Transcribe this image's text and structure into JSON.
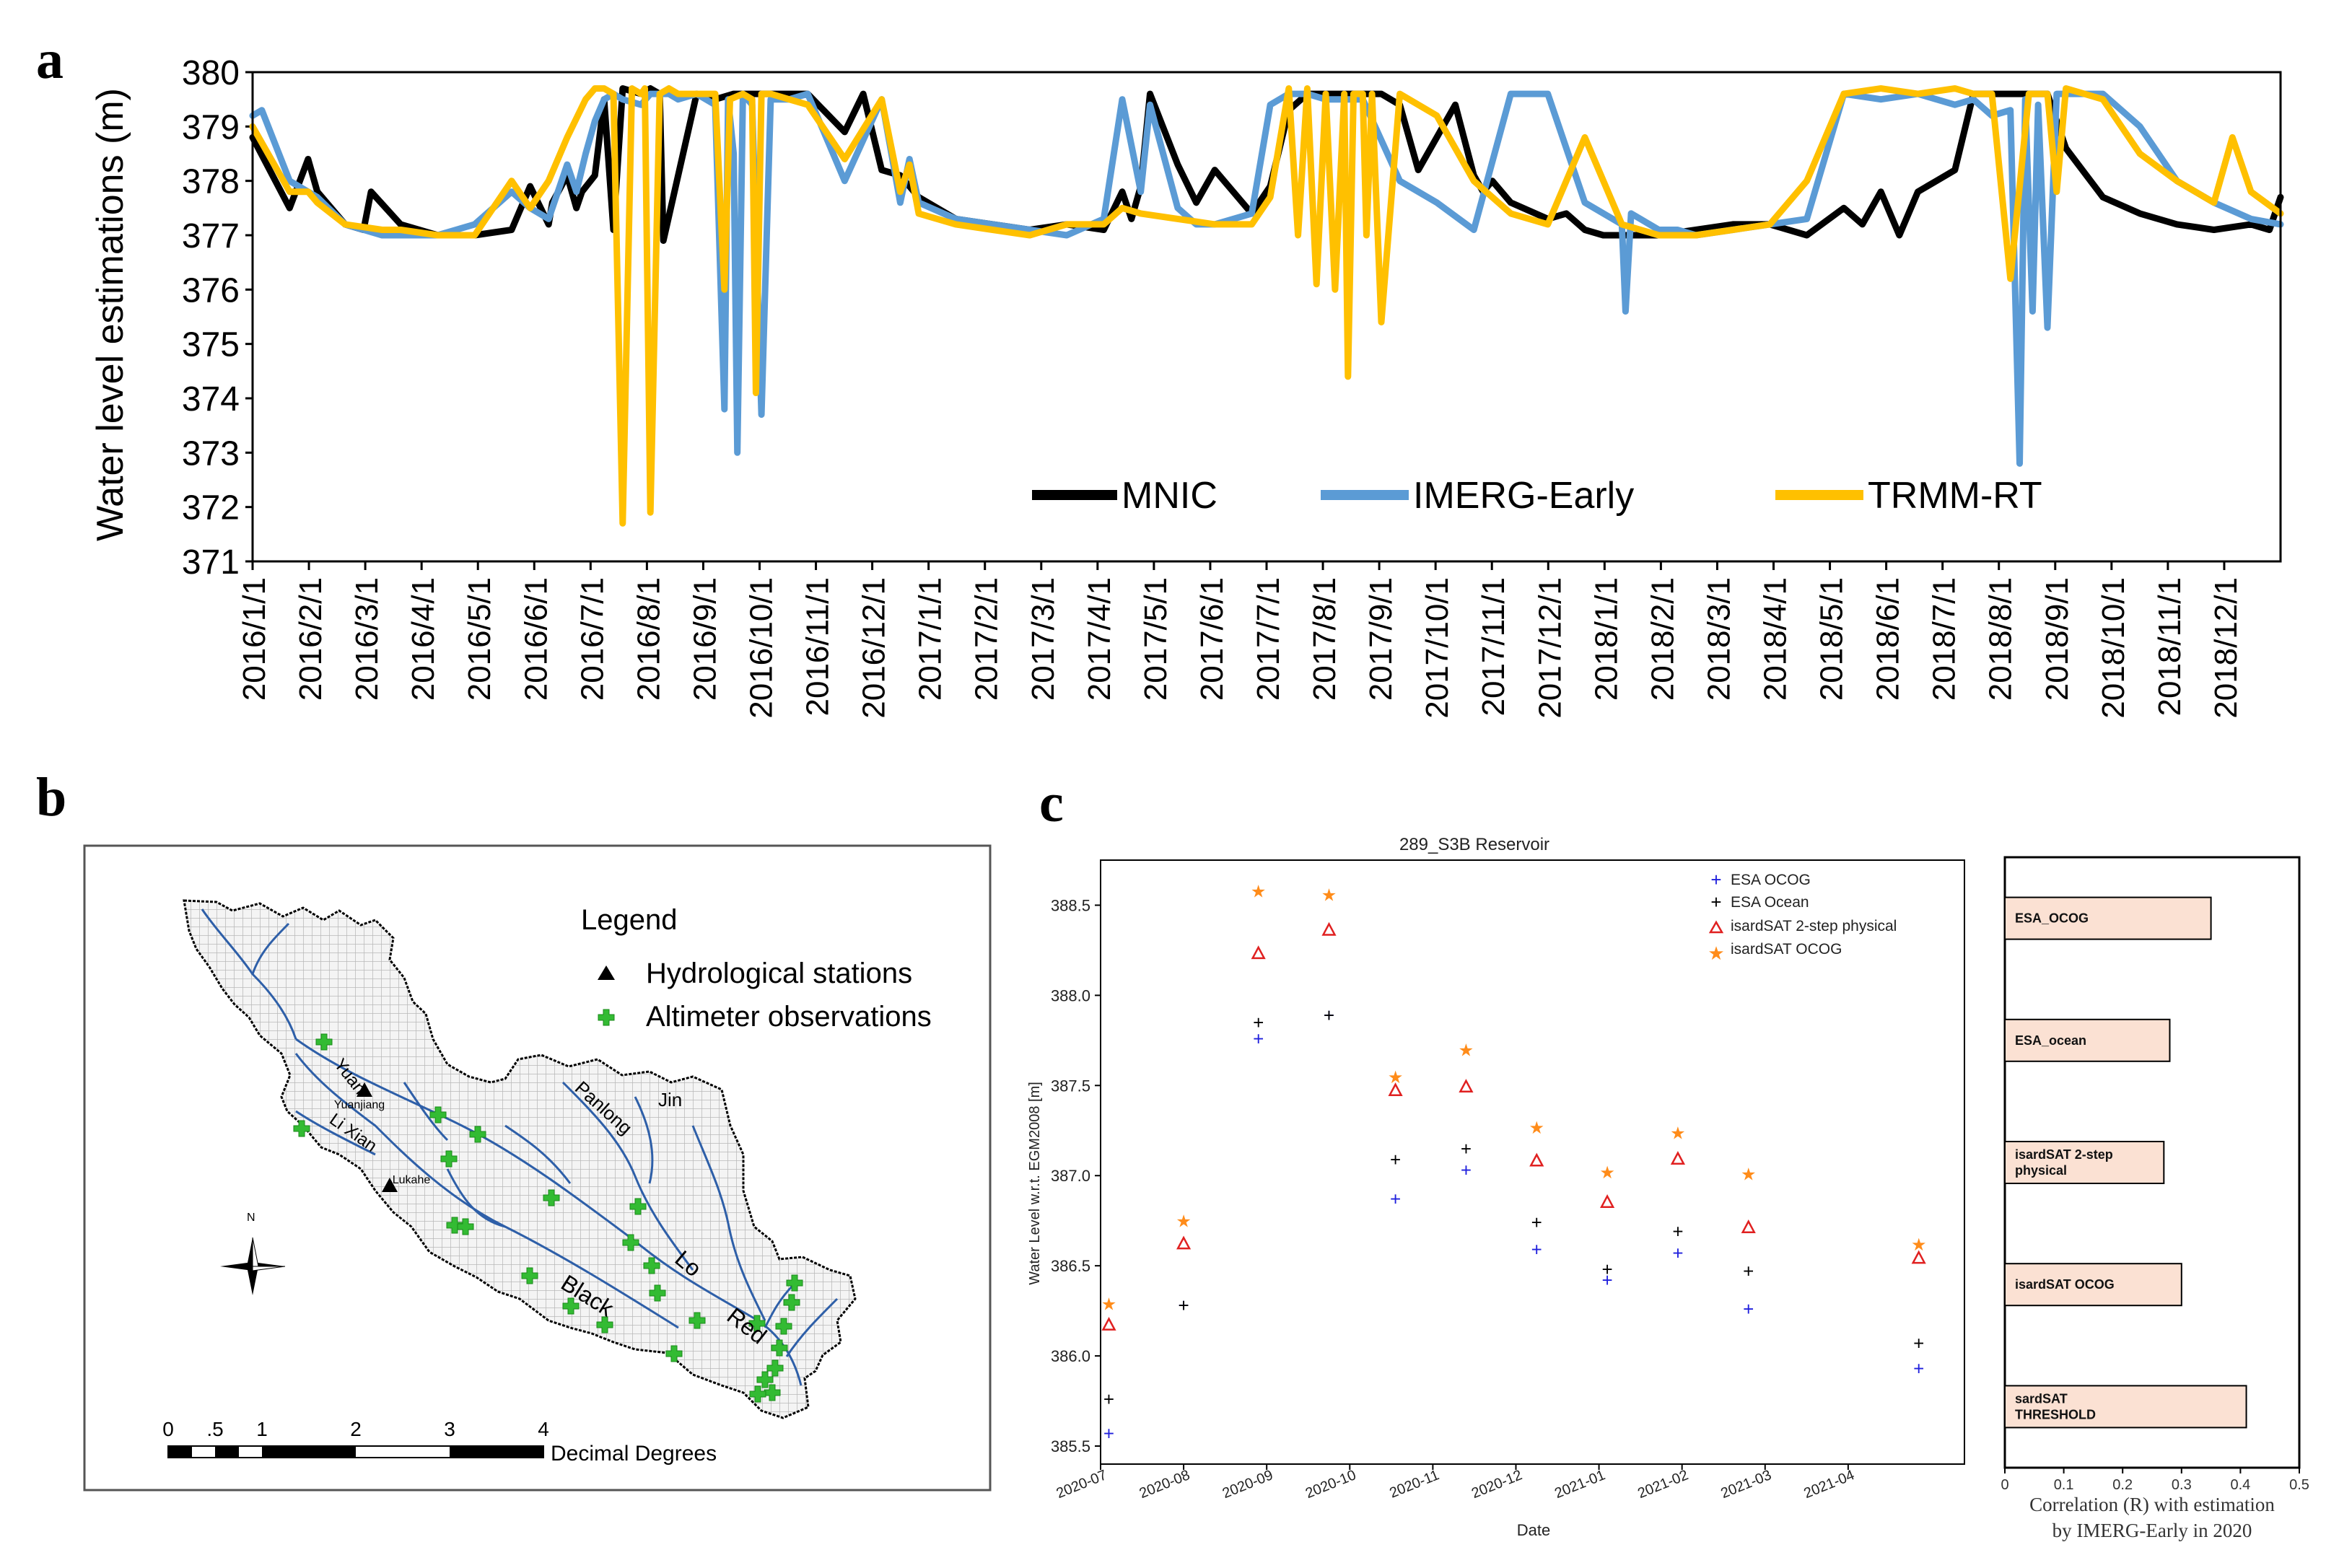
{
  "panels": {
    "a": "a",
    "b": "b",
    "c": "c"
  },
  "colors": {
    "mnic": "#000000",
    "imerg": "#5b9bd5",
    "trmm": "#ffc000",
    "esa_ocog": "#2020dd",
    "esa_ocean": "#000000",
    "isard_2step": "#e02020",
    "isard_ocog": "#ff8c1a",
    "bar_fill": "#fbe1d3",
    "river": "#2e5fa8",
    "altimeter": "#33bb33"
  },
  "panel_a": {
    "chart_data": {
      "type": "line",
      "ylabel": "Water level estimations (m)",
      "ylim": [
        371,
        380
      ],
      "yticks": [
        371,
        372,
        373,
        374,
        375,
        376,
        377,
        378,
        379,
        380
      ],
      "x_range_days": [
        0,
        1096
      ],
      "month_labels": [
        "2016/1/1",
        "2016/2/1",
        "2016/3/1",
        "2016/4/1",
        "2016/5/1",
        "2016/6/1",
        "2016/7/1",
        "2016/8/1",
        "2016/9/1",
        "2016/10/1",
        "2016/11/1",
        "2016/12/1",
        "2017/1/1",
        "2017/2/1",
        "2017/3/1",
        "2017/4/1",
        "2017/5/1",
        "2017/6/1",
        "2017/7/1",
        "2017/8/1",
        "2017/9/1",
        "2017/10/1",
        "2017/11/1",
        "2017/12/1",
        "2018/1/1",
        "2018/2/1",
        "2018/3/1",
        "2018/4/1",
        "2018/5/1",
        "2018/6/1",
        "2018/7/1",
        "2018/8/1",
        "2018/9/1",
        "2018/10/1",
        "2018/11/1",
        "2018/12/1"
      ],
      "series": [
        {
          "name": "MNIC",
          "x": [
            0,
            20,
            30,
            35,
            50,
            60,
            64,
            80,
            100,
            120,
            140,
            150,
            160,
            162,
            170,
            175,
            178,
            185,
            190,
            195,
            200,
            210,
            215,
            220,
            222,
            240,
            250,
            260,
            280,
            300,
            320,
            330,
            340,
            350,
            360,
            380,
            400,
            420,
            440,
            460,
            470,
            475,
            480,
            485,
            500,
            510,
            520,
            540,
            550,
            560,
            570,
            580,
            590,
            600,
            610,
            620,
            630,
            650,
            660,
            665,
            670,
            680,
            700,
            710,
            720,
            730,
            735,
            740,
            750,
            760,
            780,
            800,
            820,
            840,
            860,
            870,
            880,
            890,
            900,
            910,
            920,
            930,
            940,
            950,
            960,
            970,
            980,
            1000,
            1020,
            1040,
            1060,
            1080,
            1090,
            1096
          ],
          "y": [
            378.8,
            377.5,
            378.4,
            377.8,
            377.2,
            377.1,
            377.8,
            377.2,
            377.0,
            377.0,
            377.1,
            377.9,
            377.2,
            377.6,
            378.1,
            377.5,
            377.8,
            378.1,
            379.5,
            377.1,
            379.7,
            379.6,
            379.7,
            379.6,
            376.9,
            379.6,
            379.5,
            379.6,
            379.6,
            379.6,
            378.9,
            379.6,
            378.2,
            378.1,
            377.7,
            377.3,
            377.2,
            377.1,
            377.2,
            377.1,
            377.8,
            377.3,
            377.9,
            379.6,
            378.3,
            377.6,
            378.2,
            377.4,
            377.9,
            379.3,
            379.6,
            379.6,
            379.6,
            379.6,
            379.6,
            379.4,
            378.2,
            379.4,
            378.1,
            377.8,
            378.0,
            377.6,
            377.3,
            377.4,
            377.1,
            377.0,
            377.0,
            377.0,
            377.0,
            377.0,
            377.1,
            377.2,
            377.2,
            377.0,
            377.5,
            377.2,
            377.8,
            377.0,
            377.8,
            378.0,
            378.2,
            379.6,
            379.6,
            379.6,
            379.6,
            379.6,
            378.6,
            377.7,
            377.4,
            377.2,
            377.1,
            377.2,
            377.1,
            377.7
          ]
        },
        {
          "name": "IMERG-Early",
          "x": [
            0,
            5,
            20,
            35,
            50,
            70,
            80,
            100,
            120,
            140,
            150,
            160,
            170,
            175,
            180,
            185,
            190,
            195,
            200,
            210,
            215,
            220,
            225,
            230,
            240,
            250,
            255,
            257,
            260,
            262,
            265,
            270,
            275,
            280,
            290,
            300,
            320,
            340,
            350,
            355,
            360,
            380,
            400,
            420,
            440,
            460,
            470,
            480,
            485,
            500,
            510,
            520,
            540,
            550,
            560,
            570,
            580,
            600,
            620,
            640,
            660,
            680,
            700,
            720,
            740,
            742,
            745,
            750,
            760,
            770,
            780,
            800,
            820,
            840,
            860,
            880,
            900,
            920,
            930,
            940,
            950,
            955,
            958,
            962,
            965,
            970,
            975,
            980,
            990,
            1000,
            1020,
            1040,
            1060,
            1080,
            1096
          ],
          "y": [
            379.2,
            379.3,
            378.0,
            377.7,
            377.2,
            377.0,
            377.0,
            377.0,
            377.2,
            377.8,
            377.5,
            377.3,
            378.3,
            377.8,
            378.5,
            379.1,
            379.5,
            379.6,
            379.5,
            379.4,
            379.6,
            379.6,
            379.6,
            379.5,
            379.6,
            379.4,
            373.8,
            379.5,
            378.5,
            373.0,
            379.6,
            379.4,
            373.7,
            379.5,
            379.5,
            379.6,
            378.0,
            379.5,
            377.6,
            378.4,
            377.6,
            377.3,
            377.2,
            377.1,
            377.0,
            377.3,
            379.5,
            377.8,
            379.4,
            377.5,
            377.2,
            377.2,
            377.4,
            379.4,
            379.6,
            379.6,
            379.5,
            379.5,
            378.0,
            377.6,
            377.1,
            379.6,
            379.6,
            377.6,
            377.2,
            375.6,
            377.4,
            377.3,
            377.1,
            377.1,
            377.0,
            377.1,
            377.2,
            377.3,
            379.6,
            379.5,
            379.6,
            379.4,
            379.5,
            379.2,
            379.3,
            372.8,
            379.5,
            375.6,
            379.4,
            375.3,
            379.6,
            379.6,
            379.6,
            379.6,
            379.0,
            378.0,
            377.6,
            377.3,
            377.2
          ]
        },
        {
          "name": "TRMM-RT",
          "x": [
            0,
            20,
            30,
            35,
            50,
            70,
            80,
            100,
            120,
            140,
            150,
            160,
            170,
            180,
            185,
            190,
            195,
            200,
            205,
            210,
            212,
            215,
            220,
            225,
            230,
            240,
            250,
            255,
            258,
            265,
            270,
            272,
            275,
            280,
            290,
            300,
            320,
            340,
            350,
            355,
            360,
            380,
            400,
            420,
            440,
            460,
            470,
            480,
            500,
            520,
            540,
            550,
            560,
            565,
            570,
            575,
            580,
            585,
            590,
            592,
            595,
            600,
            602,
            605,
            610,
            620,
            640,
            660,
            680,
            700,
            720,
            740,
            760,
            780,
            800,
            820,
            840,
            860,
            880,
            900,
            920,
            930,
            940,
            950,
            960,
            970,
            975,
            980,
            990,
            1000,
            1020,
            1040,
            1060,
            1070,
            1080,
            1096
          ],
          "y": [
            379.0,
            377.8,
            377.8,
            377.6,
            377.2,
            377.1,
            377.1,
            377.0,
            377.0,
            378.0,
            377.5,
            378.0,
            378.8,
            379.5,
            379.7,
            379.7,
            379.6,
            371.7,
            379.7,
            379.6,
            379.7,
            371.9,
            379.6,
            379.7,
            379.6,
            379.6,
            379.6,
            376.0,
            379.5,
            379.6,
            379.5,
            374.1,
            379.6,
            379.6,
            379.5,
            379.4,
            378.4,
            379.5,
            377.8,
            378.3,
            377.4,
            377.2,
            377.1,
            377.0,
            377.2,
            377.2,
            377.5,
            377.4,
            377.3,
            377.2,
            377.2,
            377.7,
            379.7,
            377.0,
            379.7,
            376.1,
            379.6,
            376.0,
            379.6,
            374.4,
            379.6,
            379.6,
            377.0,
            379.6,
            375.4,
            379.6,
            379.2,
            378.0,
            377.4,
            377.2,
            378.8,
            377.2,
            377.0,
            377.0,
            377.1,
            377.2,
            378.0,
            379.6,
            379.7,
            379.6,
            379.7,
            379.6,
            379.6,
            376.2,
            379.6,
            379.6,
            377.8,
            379.7,
            379.6,
            379.5,
            378.5,
            378.0,
            377.6,
            378.8,
            377.8,
            377.4
          ]
        }
      ]
    }
  },
  "panel_b": {
    "legend_title": "Legend",
    "legend_stations": "Hydrological stations",
    "legend_altimeter": "Altimeter observations",
    "rivers": {
      "yuan": "Yuan",
      "lixian": "Li Xian",
      "panlong": "Panlong",
      "jin": "Jin",
      "lo": "Lo",
      "black": "Black",
      "red": "Red"
    },
    "stations": {
      "yuanjiang": "Yuanjiang",
      "lukahe": "Lukahe"
    },
    "north": "N",
    "scale_ticks": [
      "0",
      ".5",
      "1",
      "2",
      "3",
      "4"
    ],
    "scale_unit": "Decimal Degrees"
  },
  "panel_c": {
    "chart_data": {
      "type": "scatter",
      "title": "289_S3B Reservoir",
      "xlabel": "Date",
      "ylabel": "Water Level w.r.t. EGM2008 [m]",
      "ylim": [
        385.4,
        388.75
      ],
      "yticks": [
        "385.5",
        "386.0",
        "386.5",
        "387.0",
        "387.5",
        "388.0",
        "388.5"
      ],
      "ytick_values": [
        385.5,
        386.0,
        386.5,
        387.0,
        387.5,
        388.0,
        388.5
      ],
      "x_range_months": [
        0,
        10.4
      ],
      "xticks": [
        "2020-07",
        "2020-08",
        "2020-09",
        "2020-10",
        "2020-11",
        "2020-12",
        "2021-01",
        "2021-02",
        "2021-03",
        "2021-04"
      ],
      "x_dates": [
        0.1,
        1.0,
        1.9,
        2.75,
        3.55,
        4.4,
        5.25,
        6.1,
        6.95,
        7.8,
        9.85
      ],
      "series": [
        {
          "name": "ESA OCOG",
          "values": [
            385.57,
            386.28,
            387.76,
            387.89,
            386.87,
            387.03,
            386.59,
            386.42,
            386.57,
            386.26,
            385.93
          ]
        },
        {
          "name": "ESA Ocean",
          "values": [
            385.76,
            386.28,
            387.85,
            387.89,
            387.09,
            387.15,
            386.74,
            386.48,
            386.69,
            386.47,
            386.07
          ]
        },
        {
          "name": "isardSAT 2-step physical",
          "values": [
            386.17,
            386.62,
            388.23,
            388.36,
            387.47,
            387.49,
            387.08,
            386.85,
            387.09,
            386.71,
            386.54
          ]
        },
        {
          "name": "isardSAT OCOG",
          "values": [
            386.29,
            386.75,
            388.58,
            388.56,
            387.55,
            387.7,
            387.27,
            387.02,
            387.24,
            387.01,
            386.62
          ]
        }
      ]
    }
  },
  "panel_c_bars": {
    "chart_data": {
      "type": "bar",
      "orientation": "horizontal",
      "xlabel_line1": "Correlation (R) with estimation",
      "xlabel_line2": "by IMERG-Early  in 2020",
      "xlim": [
        0,
        0.5
      ],
      "xticks": [
        "0",
        "0.1",
        "0.2",
        "0.3",
        "0.4",
        "0.5"
      ],
      "xtick_values": [
        0,
        0.1,
        0.2,
        0.3,
        0.4,
        0.5
      ],
      "categories": [
        [
          "ESA_OCOG"
        ],
        [
          "ESA_ocean"
        ],
        [
          "isardSAT 2-step",
          "physical"
        ],
        [
          "isardSAT OCOG"
        ],
        [
          "sardSAT",
          "THRESHOLD"
        ]
      ],
      "values": [
        0.35,
        0.28,
        0.27,
        0.3,
        0.41
      ]
    }
  }
}
